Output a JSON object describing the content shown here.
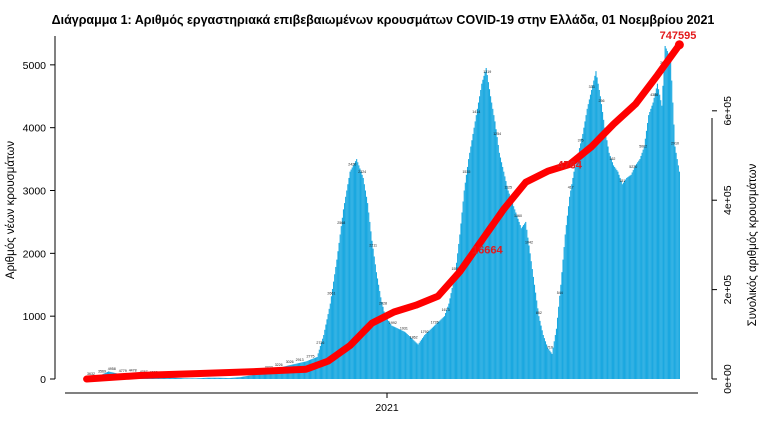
{
  "chart_data": {
    "type": "bar",
    "title": "Διάγραμμα 1: Αριθμός εργαστηριακά επιβεβαιωμένων κρουσμάτων COVID-19 στην Ελλάδα, 01 Νοεμβρίου 2021",
    "xlabel": "",
    "x_tick_labels": [
      "2021"
    ],
    "ylabel": "Αριθμός νέων κρουσμάτων",
    "y2label": "Συνολικός αριθμός κρουσμάτων",
    "ylim": [
      0,
      5300
    ],
    "y_ticks": [
      "0",
      "1000",
      "2000",
      "3000",
      "4000",
      "5000"
    ],
    "y2lim": [
      0,
      745000
    ],
    "y2_ticks": [
      "0e+00",
      "2e+05",
      "4e+05",
      "6e+05"
    ],
    "series": [
      {
        "kind": "bar",
        "color": "#1aa8e0",
        "role": "daily new cases",
        "points": [
          [
            0,
            20
          ],
          [
            10,
            40
          ],
          [
            20,
            120
          ],
          [
            30,
            80
          ],
          [
            40,
            90
          ],
          [
            55,
            60
          ],
          [
            70,
            40
          ],
          [
            80,
            20
          ],
          [
            90,
            10
          ],
          [
            100,
            10
          ],
          [
            110,
            20
          ],
          [
            120,
            20
          ],
          [
            130,
            15
          ],
          [
            140,
            30
          ],
          [
            150,
            60
          ],
          [
            160,
            110
          ],
          [
            170,
            150
          ],
          [
            180,
            200
          ],
          [
            190,
            240
          ],
          [
            200,
            280
          ],
          [
            210,
            350
          ],
          [
            216,
            700
          ],
          [
            222,
            1200
          ],
          [
            228,
            1900
          ],
          [
            234,
            2700
          ],
          [
            240,
            3300
          ],
          [
            246,
            3500
          ],
          [
            252,
            3200
          ],
          [
            256,
            2800
          ],
          [
            260,
            2200
          ],
          [
            264,
            1700
          ],
          [
            268,
            1300
          ],
          [
            272,
            1000
          ],
          [
            278,
            850
          ],
          [
            284,
            800
          ],
          [
            290,
            750
          ],
          [
            296,
            650
          ],
          [
            302,
            550
          ],
          [
            308,
            700
          ],
          [
            314,
            800
          ],
          [
            320,
            900
          ],
          [
            326,
            1000
          ],
          [
            330,
            1200
          ],
          [
            336,
            1700
          ],
          [
            340,
            2300
          ],
          [
            344,
            3000
          ],
          [
            348,
            3500
          ],
          [
            352,
            3900
          ],
          [
            356,
            4300
          ],
          [
            360,
            4700
          ],
          [
            364,
            4950
          ],
          [
            368,
            4500
          ],
          [
            372,
            4100
          ],
          [
            376,
            3600
          ],
          [
            380,
            3300
          ],
          [
            384,
            3000
          ],
          [
            388,
            2800
          ],
          [
            392,
            2600
          ],
          [
            396,
            2400
          ],
          [
            400,
            2500
          ],
          [
            404,
            2000
          ],
          [
            408,
            1500
          ],
          [
            412,
            1000
          ],
          [
            416,
            700
          ],
          [
            420,
            500
          ],
          [
            424,
            400
          ],
          [
            428,
            800
          ],
          [
            432,
            1500
          ],
          [
            436,
            2300
          ],
          [
            440,
            2900
          ],
          [
            444,
            3300
          ],
          [
            448,
            3600
          ],
          [
            452,
            3900
          ],
          [
            456,
            4300
          ],
          [
            460,
            4600
          ],
          [
            464,
            4900
          ],
          [
            468,
            4500
          ],
          [
            472,
            4000
          ],
          [
            476,
            3600
          ],
          [
            480,
            3400
          ],
          [
            484,
            3300
          ],
          [
            488,
            3100
          ],
          [
            492,
            3200
          ],
          [
            496,
            3250
          ],
          [
            500,
            3400
          ],
          [
            504,
            3500
          ],
          [
            508,
            3700
          ],
          [
            512,
            4200
          ],
          [
            516,
            4400
          ],
          [
            520,
            4700
          ],
          [
            524,
            4350
          ],
          [
            527,
            5300
          ],
          [
            532,
            5100
          ],
          [
            536,
            3700
          ],
          [
            540,
            3300
          ]
        ]
      },
      {
        "kind": "line",
        "color": "#ff0000",
        "role": "cumulative cases",
        "points": [
          [
            0,
            0
          ],
          [
            50,
            8000
          ],
          [
            100,
            12000
          ],
          [
            150,
            16000
          ],
          [
            200,
            22000
          ],
          [
            220,
            40000
          ],
          [
            240,
            75000
          ],
          [
            260,
            125000
          ],
          [
            280,
            150000
          ],
          [
            300,
            165000
          ],
          [
            320,
            185000
          ],
          [
            340,
            240000
          ],
          [
            360,
            310000
          ],
          [
            380,
            380000
          ],
          [
            400,
            440000
          ],
          [
            420,
            465000
          ],
          [
            440,
            480000
          ],
          [
            460,
            520000
          ],
          [
            480,
            570000
          ],
          [
            500,
            615000
          ],
          [
            520,
            680000
          ],
          [
            540,
            747595
          ]
        ]
      }
    ],
    "annotations": [
      "747595",
      "16664",
      "4764"
    ],
    "bar_value_labels": [
      "3632",
      "3569",
      "4958",
      "4779",
      "4478",
      "4767",
      "4699",
      "4961",
      "4970",
      "4490",
      "4398",
      "3918",
      "3908",
      "3739",
      "3573",
      "3535",
      "3373",
      "3322",
      "3226",
      "3026",
      "2913",
      "2775",
      "2726",
      "2661",
      "2568",
      "2420",
      "2324",
      "2211",
      "2028",
      "1992",
      "1931",
      "1862",
      "1792",
      "1726",
      "1673",
      "1555",
      "1535",
      "1414",
      "1319",
      "1254",
      "1125",
      "1060",
      "1042",
      "862",
      "710",
      "544",
      "417",
      "376",
      "333",
      "256",
      "162",
      "151",
      "5230",
      "5002",
      "4386",
      "3690",
      "2910"
    ],
    "grid": false,
    "legend": "none"
  }
}
